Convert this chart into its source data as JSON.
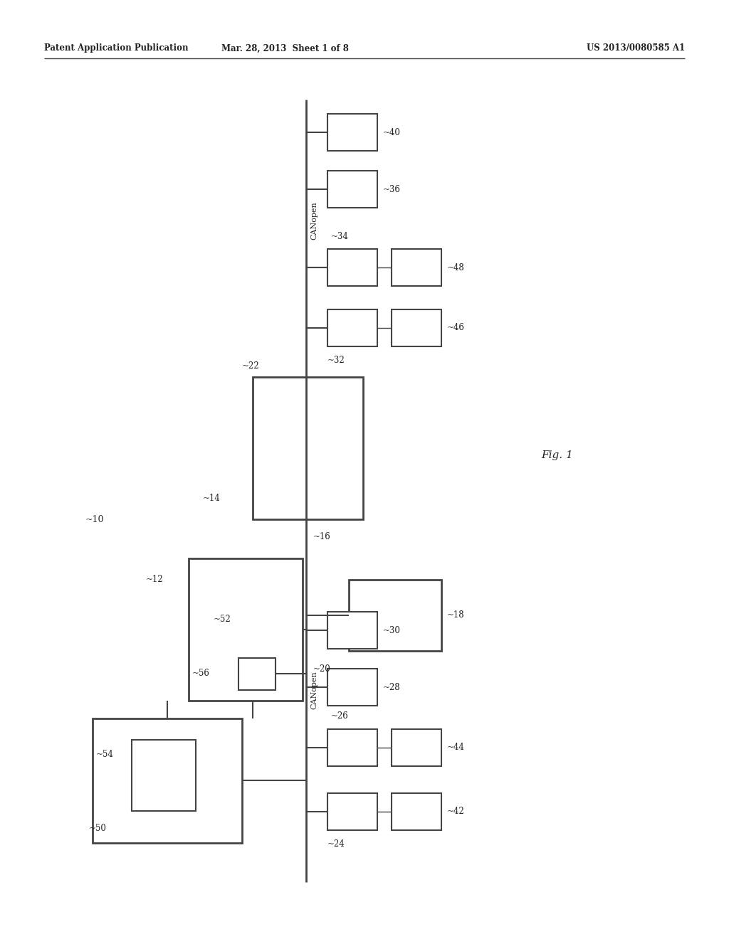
{
  "header_left": "Patent Application Publication",
  "header_mid": "Mar. 28, 2013  Sheet 1 of 8",
  "header_right": "US 2013/0080585 A1",
  "fig_label": "Fig. 1",
  "background": "#ffffff",
  "line_color": "#444444",
  "label_10": "10",
  "label_12": "12",
  "label_14": "14",
  "label_16": "16",
  "label_18": "18",
  "label_20": "20",
  "label_22": "22",
  "label_24": "24",
  "label_26": "26",
  "label_28": "28",
  "label_30": "30",
  "label_32": "32",
  "label_34": "34",
  "label_36": "36",
  "label_40": "40",
  "label_42": "42",
  "label_44": "44",
  "label_46": "46",
  "label_48": "48",
  "label_50": "50",
  "label_52": "52",
  "label_54": "54",
  "label_56": "56",
  "canopen_upper": "CANopen",
  "canopen_lower": "CANopen"
}
